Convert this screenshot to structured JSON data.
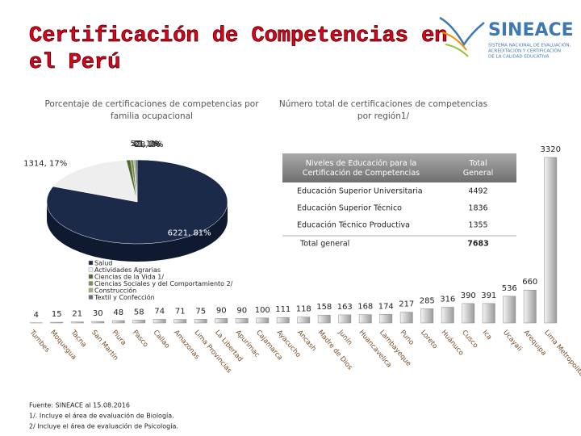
{
  "header": {
    "title": [
      "Certificación de Competencias en",
      "el Perú"
    ]
  },
  "logo": {
    "name": "SINEACE",
    "subtitle": [
      "SISTEMA NACIONAL DE EVALUACIÓN,",
      "ACREDITACIÓN Y CERTIFICACIÓN",
      "DE LA CALIDAD EDUCATIVA"
    ]
  },
  "chart_data": [
    {
      "type": "pie",
      "title": [
        "Porcentaje de certificaciones de competencias por",
        "familia ocupacional"
      ],
      "categories": [
        "Salud",
        "Actividades Agrarias",
        "Ciencias de la Vida 1/",
        "Ciencias Sociales y del Comportamiento 2/",
        "Construcción",
        "Textil y Confección"
      ],
      "values": [
        6221,
        1314,
        57,
        42,
        21,
        28
      ],
      "value_labels": [
        "6221, 81%",
        "1314, 17%",
        "57, 1%",
        "42, 1%",
        "21, 0%",
        "28, 0%"
      ],
      "colors": [
        "#1b2a48",
        "#eeeeee",
        "#4f6b2f",
        "#7d8f55",
        "#a3ad7c",
        "#5d6f8a"
      ]
    },
    {
      "type": "bar",
      "title": [
        "Número total de certificaciones de competencias",
        "por región1/"
      ],
      "categories": [
        "Tumbes",
        "Moquegua",
        "Tacna",
        "San Martín",
        "Piura",
        "Pasco",
        "Callao",
        "Amazonas",
        "Lima Provincias",
        "La Libertad",
        "Apurímac",
        "Cajamarca",
        "Ayacucho",
        "Ancash",
        "Madre de Dios",
        "Junín",
        "Huancavelica",
        "Lambayeque",
        "Puno",
        "Loreto",
        "Huánuco",
        "Cusco",
        "Ica",
        "Ucayali",
        "Arequipa",
        "Lima Metropolitana"
      ],
      "values": [
        4,
        15,
        21,
        30,
        48,
        58,
        74,
        71,
        75,
        90,
        90,
        100,
        111,
        118,
        158,
        163,
        168,
        174,
        217,
        285,
        316,
        390,
        391,
        536,
        660,
        3320
      ],
      "ylim": [
        0,
        3400
      ],
      "color": "#c8c8c8"
    }
  ],
  "table": {
    "header": [
      "Niveles de Educación para la Certificación de Competencias",
      "Total General"
    ],
    "rows": [
      [
        "Educación Superior Universitaria",
        4492
      ],
      [
        "Educación Superior Técnico",
        1836
      ],
      [
        "Educación Técnico Productiva",
        1355
      ]
    ],
    "total": [
      "Total general",
      7683
    ]
  },
  "footnotes": [
    "Fuente: SINEACE al 15.08.2016",
    "1/. Incluye el área de evaluación de Biología.",
    "2/ Incluye el área de evaluación de Psicología."
  ]
}
